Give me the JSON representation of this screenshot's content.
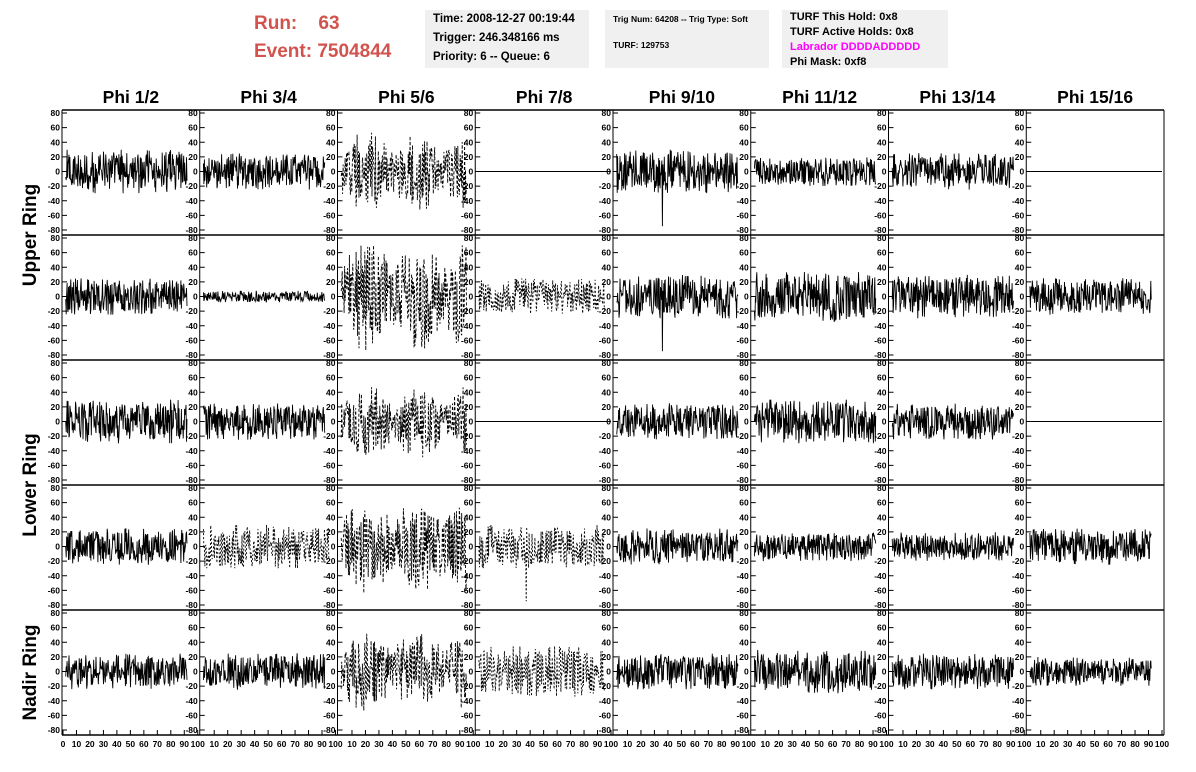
{
  "header": {
    "run_label": "Run:",
    "run_value": "63",
    "event_label": "Event:",
    "event_value": "7504844",
    "time": "Time: 2008-12-27 00:19:44",
    "trigger": "Trigger: 246.348166 ms",
    "priority": "Priority: 6 -- Queue: 6",
    "trig_num": "Trig Num: 64208 -- Trig Type: Soft",
    "turf": "TURF: 129753",
    "turf_this_hold": "TURF This Hold: 0x8",
    "turf_active_holds": "TURF Active Holds: 0x8",
    "labrador": "Labrador DDDDADDDDD",
    "phi_mask": "Phi Mask: 0xf8"
  },
  "colors": {
    "run_text": "#d2534e",
    "labrador": "#ff00ff",
    "info_bg": "#f0f0f0"
  },
  "chart_data": {
    "type": "line",
    "columns": [
      "Phi 1/2",
      "Phi 3/4",
      "Phi 5/6",
      "Phi 7/8",
      "Phi 9/10",
      "Phi 11/12",
      "Phi 13/14",
      "Phi 15/16"
    ],
    "rows": [
      "Upper Ring",
      "Lower Ring",
      "Nadir Ring"
    ],
    "sub_rows_per_ring": [
      2,
      2,
      1
    ],
    "x_ticks": [
      "0",
      "10",
      "20",
      "30",
      "40",
      "50",
      "60",
      "70",
      "80",
      "90",
      "100"
    ],
    "y_ticks": [
      "80",
      "60",
      "40",
      "20",
      "0",
      "-20",
      "-40",
      "-60",
      "-80"
    ],
    "xlim": [
      0,
      100
    ],
    "ylim": [
      -80,
      80
    ],
    "grid": false,
    "panels": [
      [
        "noise-30",
        "noise-25",
        "dashed-55",
        "flat",
        "noise-30-spike-down",
        "noise-20",
        "noise-25",
        "flat"
      ],
      [
        "noise-25",
        "low-8",
        "dashed-75",
        "dotted-25",
        "noise-30-spike-down",
        "noise-35",
        "noise-30",
        "noise-25"
      ],
      [
        "noise-30",
        "noise-25",
        "dashed-50",
        "flat",
        "noise-25",
        "noise-30",
        "noise-25",
        "flat"
      ],
      [
        "noise-25",
        "dotted-30",
        "dashed-65",
        "dotted-30-spike-down",
        "noise-25",
        "noise-20",
        "noise-20",
        "noise-25"
      ],
      [
        "noise-25",
        "noise-25",
        "dashed-55",
        "dotted-35",
        "noise-25",
        "noise-30",
        "noise-25",
        "noise-20"
      ]
    ]
  }
}
